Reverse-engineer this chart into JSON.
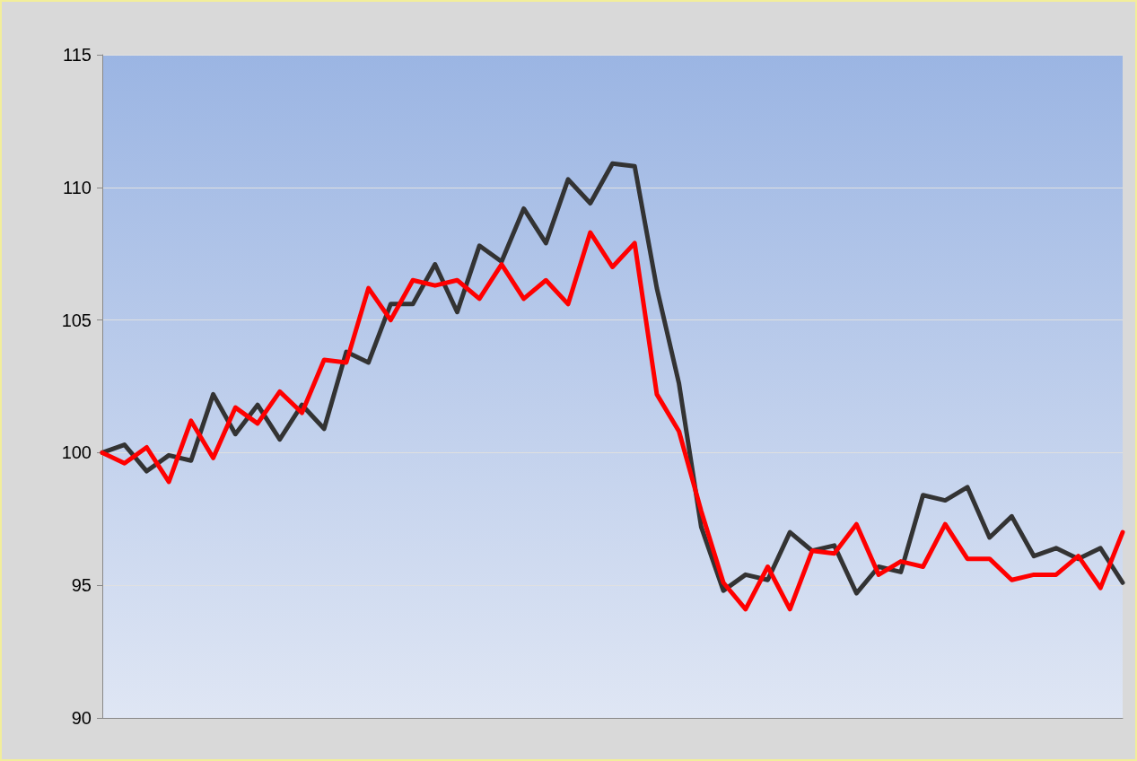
{
  "chart_data": {
    "type": "line",
    "categories": [
      null,
      null,
      null,
      null,
      null,
      null,
      null,
      null,
      null,
      null,
      null,
      null,
      null,
      null,
      null,
      null,
      null,
      null,
      null,
      null,
      null,
      null,
      null,
      null,
      null,
      null,
      null,
      null,
      null,
      null,
      null,
      null,
      null,
      null,
      null,
      null,
      null,
      null,
      null,
      null,
      null,
      null,
      null,
      null,
      null,
      null,
      null
    ],
    "series": [
      {
        "color": "#333333",
        "values": [
          100,
          100.3,
          99.3,
          99.9,
          99.7,
          102.2,
          100.7,
          101.8,
          100.5,
          101.8,
          100.9,
          103.8,
          103.4,
          105.6,
          105.6,
          107.1,
          105.3,
          107.8,
          107.2,
          109.2,
          107.9,
          110.3,
          109.4,
          110.9,
          110.8,
          106.2,
          102.6,
          97.2,
          94.8,
          95.4,
          95.2,
          97.0,
          96.3,
          96.5,
          94.7,
          95.7,
          95.5,
          98.4,
          98.2,
          98.7,
          96.8,
          97.6,
          96.1,
          96.4,
          96.0,
          96.4,
          95.1
        ]
      },
      {
        "color": "#ff0000",
        "values": [
          100,
          99.6,
          100.2,
          98.9,
          101.2,
          99.8,
          101.7,
          101.1,
          102.3,
          101.5,
          103.5,
          103.4,
          106.2,
          105.0,
          106.5,
          106.3,
          106.5,
          105.8,
          107.1,
          105.8,
          106.5,
          105.6,
          108.3,
          107.0,
          107.9,
          102.2,
          100.8,
          97.8,
          95.1,
          94.1,
          95.7,
          94.1,
          96.3,
          96.2,
          97.3,
          95.4,
          95.9,
          95.7,
          97.3,
          96.0,
          96.0,
          95.2,
          95.4,
          95.4,
          96.1,
          94.9,
          97.0
        ]
      }
    ],
    "ylim": [
      90,
      115
    ],
    "yticks": [
      90,
      95,
      100,
      105,
      110,
      115
    ],
    "grid": "y",
    "marker": "none",
    "line_style": "solid"
  }
}
